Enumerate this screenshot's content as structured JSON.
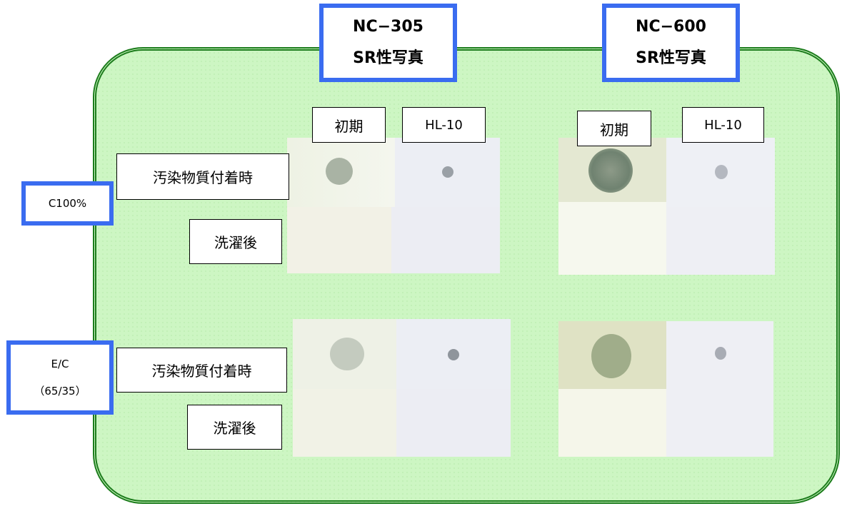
{
  "products": [
    {
      "name": [
        "NC−305",
        "SR性写真"
      ],
      "stages": [
        "初期",
        "HL-10"
      ]
    },
    {
      "name": [
        "NC−600",
        "SR性写真"
      ],
      "stages": [
        "初期",
        "HL-10"
      ]
    }
  ],
  "fabrics": [
    {
      "label": [
        "C100%"
      ],
      "rows": [
        "汚染物質付着時",
        "洗濯後"
      ]
    },
    {
      "label": [
        "E/C",
        "（65/35）"
      ],
      "rows": [
        "汚染物質付着時",
        "洗濯後"
      ]
    }
  ]
}
